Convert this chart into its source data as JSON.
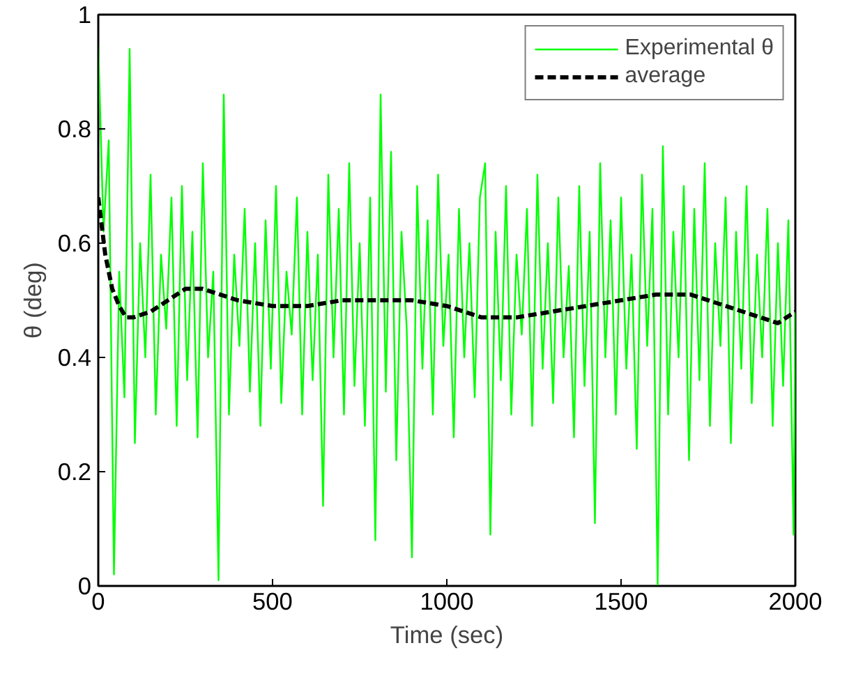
{
  "chart_data": {
    "type": "line",
    "xlabel": "Time (sec)",
    "ylabel": "θ (deg)",
    "xlim": [
      0,
      2000
    ],
    "xticks": [
      0,
      500,
      1000,
      1500,
      2000
    ],
    "ylim": [
      0,
      1
    ],
    "yticks": [
      0,
      {
        "value": 0.2,
        "label": "0.2"
      },
      {
        "value": 0.4,
        "label": "0.4"
      },
      {
        "value": 0.6,
        "label": "0.6"
      },
      {
        "value": 0.8,
        "label": "0.8"
      },
      1
    ],
    "grid": false,
    "legend": "top right",
    "series": [
      {
        "name": "Experimental θ",
        "color": "#00ff00",
        "line_style": "solid",
        "x": [
          0,
          15,
          30,
          45,
          60,
          75,
          90,
          105,
          120,
          135,
          150,
          165,
          180,
          195,
          210,
          225,
          240,
          255,
          270,
          285,
          300,
          315,
          330,
          345,
          360,
          375,
          390,
          405,
          420,
          435,
          450,
          465,
          480,
          495,
          510,
          525,
          540,
          555,
          570,
          585,
          600,
          615,
          630,
          645,
          660,
          675,
          690,
          705,
          720,
          735,
          750,
          765,
          780,
          795,
          810,
          825,
          840,
          855,
          870,
          885,
          900,
          915,
          930,
          945,
          960,
          975,
          990,
          1005,
          1020,
          1035,
          1050,
          1065,
          1080,
          1095,
          1110,
          1125,
          1140,
          1155,
          1170,
          1185,
          1200,
          1215,
          1230,
          1245,
          1260,
          1275,
          1290,
          1305,
          1320,
          1335,
          1350,
          1365,
          1380,
          1395,
          1410,
          1425,
          1440,
          1455,
          1470,
          1485,
          1500,
          1515,
          1530,
          1545,
          1560,
          1575,
          1590,
          1605,
          1620,
          1635,
          1650,
          1665,
          1680,
          1695,
          1710,
          1725,
          1740,
          1755,
          1770,
          1785,
          1800,
          1815,
          1830,
          1845,
          1860,
          1875,
          1890,
          1905,
          1920,
          1935,
          1950,
          1965,
          1980,
          1995,
          2000
        ],
        "values": [
          0.95,
          0.62,
          0.78,
          0.02,
          0.55,
          0.33,
          0.94,
          0.25,
          0.6,
          0.4,
          0.72,
          0.3,
          0.58,
          0.45,
          0.68,
          0.28,
          0.7,
          0.36,
          0.62,
          0.26,
          0.74,
          0.4,
          0.55,
          0.01,
          0.86,
          0.3,
          0.58,
          0.42,
          0.66,
          0.34,
          0.6,
          0.28,
          0.64,
          0.38,
          0.7,
          0.32,
          0.55,
          0.44,
          0.68,
          0.3,
          0.62,
          0.36,
          0.58,
          0.14,
          0.72,
          0.4,
          0.66,
          0.3,
          0.74,
          0.35,
          0.6,
          0.28,
          0.68,
          0.08,
          0.86,
          0.34,
          0.76,
          0.22,
          0.62,
          0.45,
          0.05,
          0.7,
          0.38,
          0.64,
          0.3,
          0.72,
          0.42,
          0.58,
          0.26,
          0.66,
          0.4,
          0.6,
          0.33,
          0.68,
          0.74,
          0.09,
          0.62,
          0.36,
          0.7,
          0.3,
          0.58,
          0.44,
          0.66,
          0.28,
          0.72,
          0.38,
          0.6,
          0.32,
          0.68,
          0.4,
          0.56,
          0.26,
          0.7,
          0.35,
          0.62,
          0.11,
          0.74,
          0.4,
          0.64,
          0.3,
          0.68,
          0.38,
          0.58,
          0.24,
          0.72,
          0.42,
          0.66,
          0.0,
          0.77,
          0.3,
          0.62,
          0.4,
          0.7,
          0.22,
          0.66,
          0.36,
          0.74,
          0.28,
          0.6,
          0.42,
          0.68,
          0.25,
          0.62,
          0.38,
          0.7,
          0.32,
          0.58,
          0.4,
          0.66,
          0.28,
          0.6,
          0.35,
          0.64,
          0.09,
          0.48
        ]
      },
      {
        "name": "average",
        "color": "#000000",
        "line_style": "dashed",
        "x": [
          0,
          20,
          40,
          60,
          80,
          100,
          150,
          200,
          250,
          300,
          350,
          400,
          500,
          600,
          700,
          800,
          900,
          1000,
          1100,
          1200,
          1300,
          1400,
          1500,
          1600,
          1700,
          1800,
          1900,
          1950,
          2000
        ],
        "values": [
          0.68,
          0.58,
          0.52,
          0.49,
          0.47,
          0.47,
          0.48,
          0.5,
          0.52,
          0.52,
          0.51,
          0.5,
          0.49,
          0.49,
          0.5,
          0.5,
          0.5,
          0.49,
          0.47,
          0.47,
          0.48,
          0.49,
          0.5,
          0.51,
          0.51,
          0.49,
          0.47,
          0.46,
          0.48
        ]
      }
    ]
  }
}
